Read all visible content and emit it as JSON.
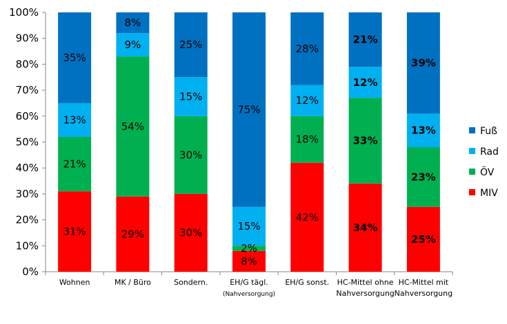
{
  "chart_data": {
    "type": "bar",
    "stacked": true,
    "ylim": [
      0,
      100
    ],
    "yticks": [
      "0%",
      "10%",
      "20%",
      "30%",
      "40%",
      "50%",
      "60%",
      "70%",
      "80%",
      "90%",
      "100%"
    ],
    "categories": [
      [
        "Wohnen"
      ],
      [
        "MK / Büro"
      ],
      [
        "Sondern."
      ],
      [
        "EH/G tägl.",
        "(Nahversorgung)"
      ],
      [
        "EH/G sonst."
      ],
      [
        "HC-Mittel ohne",
        "Nahversorgung"
      ],
      [
        "HC-Mittel mit",
        "Nahversorgung"
      ]
    ],
    "series": [
      {
        "name": "MIV",
        "color": "#ff0000",
        "values": [
          31,
          29,
          30,
          8,
          42,
          34,
          25
        ],
        "labels": [
          "31%",
          "29%",
          "30%",
          "8%",
          "42%",
          "34%",
          "25%"
        ]
      },
      {
        "name": "ÖV",
        "color": "#00b050",
        "values": [
          21,
          54,
          30,
          2,
          18,
          33,
          23
        ],
        "labels": [
          "21%",
          "54%",
          "30%",
          "2%",
          "18%",
          "33%",
          "23%"
        ]
      },
      {
        "name": "Rad",
        "color": "#00b0f0",
        "values": [
          13,
          9,
          15,
          15,
          12,
          12,
          13
        ],
        "labels": [
          "13%",
          "9%",
          "15%",
          "15%",
          "12%",
          "12%",
          "13%"
        ]
      },
      {
        "name": "Fuß",
        "color": "#0070c0",
        "values": [
          35,
          8,
          25,
          75,
          28,
          21,
          39
        ],
        "labels": [
          "35%",
          "8%",
          "25%",
          "75%",
          "28%",
          "21%",
          "39%"
        ]
      }
    ],
    "bold_categories": [
      5,
      6
    ],
    "legend_order": [
      "Fuß",
      "Rad",
      "ÖV",
      "MIV"
    ],
    "legend_position": "right",
    "grid": false
  }
}
